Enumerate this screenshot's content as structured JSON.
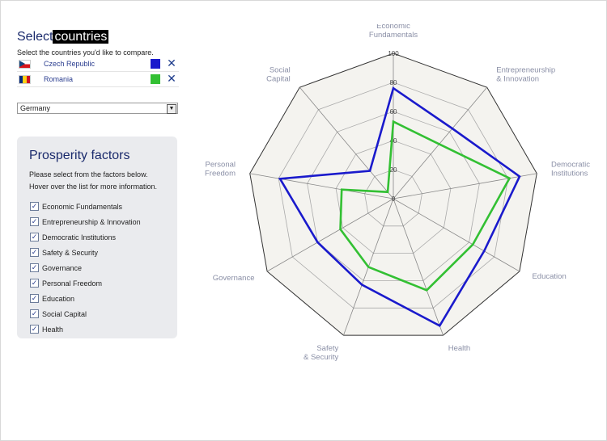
{
  "select_title_prefix": "Select",
  "select_title_highlight": "countries",
  "select_subtitle": "Select the countries you'd like to compare.",
  "countries": [
    {
      "name": "Czech Republic",
      "color": "#1a1acc",
      "flag": "cz"
    },
    {
      "name": "Romania",
      "color": "#33c033",
      "flag": "ro"
    }
  ],
  "dropdown_value": "Germany",
  "factors_panel": {
    "title": "Prosperity factors",
    "desc_line1": "Please select from the factors below.",
    "desc_line2": "Hover over the list for more information.",
    "items": [
      "Economic Fundamentals",
      "Entrepreneurship & Innovation",
      "Democratic Institutions",
      "Safety & Security",
      "Governance",
      "Personal Freedom",
      "Education",
      "Social Capital",
      "Health"
    ]
  },
  "chart_data": {
    "type": "radar",
    "axes": [
      [
        "Economic",
        "Fundamentals"
      ],
      [
        "Entrepreneurship",
        "& Innovation"
      ],
      [
        "Democratic",
        "Institutions"
      ],
      [
        "Education"
      ],
      [
        "Health"
      ],
      [
        "Safety",
        "& Security"
      ],
      [
        "Governance"
      ],
      [
        "Personal",
        "Freedom"
      ],
      [
        "Social",
        "Capital"
      ]
    ],
    "range": [
      0,
      100
    ],
    "ticks": [
      20,
      40,
      60,
      80,
      100
    ],
    "series": [
      {
        "name": "Czech Republic",
        "color": "#1a1acc",
        "values": [
          76,
          63,
          88,
          72,
          93,
          63,
          60,
          79,
          25
        ]
      },
      {
        "name": "Romania",
        "color": "#33c033",
        "values": [
          53,
          49,
          81,
          63,
          67,
          50,
          42,
          36,
          6
        ]
      }
    ]
  }
}
